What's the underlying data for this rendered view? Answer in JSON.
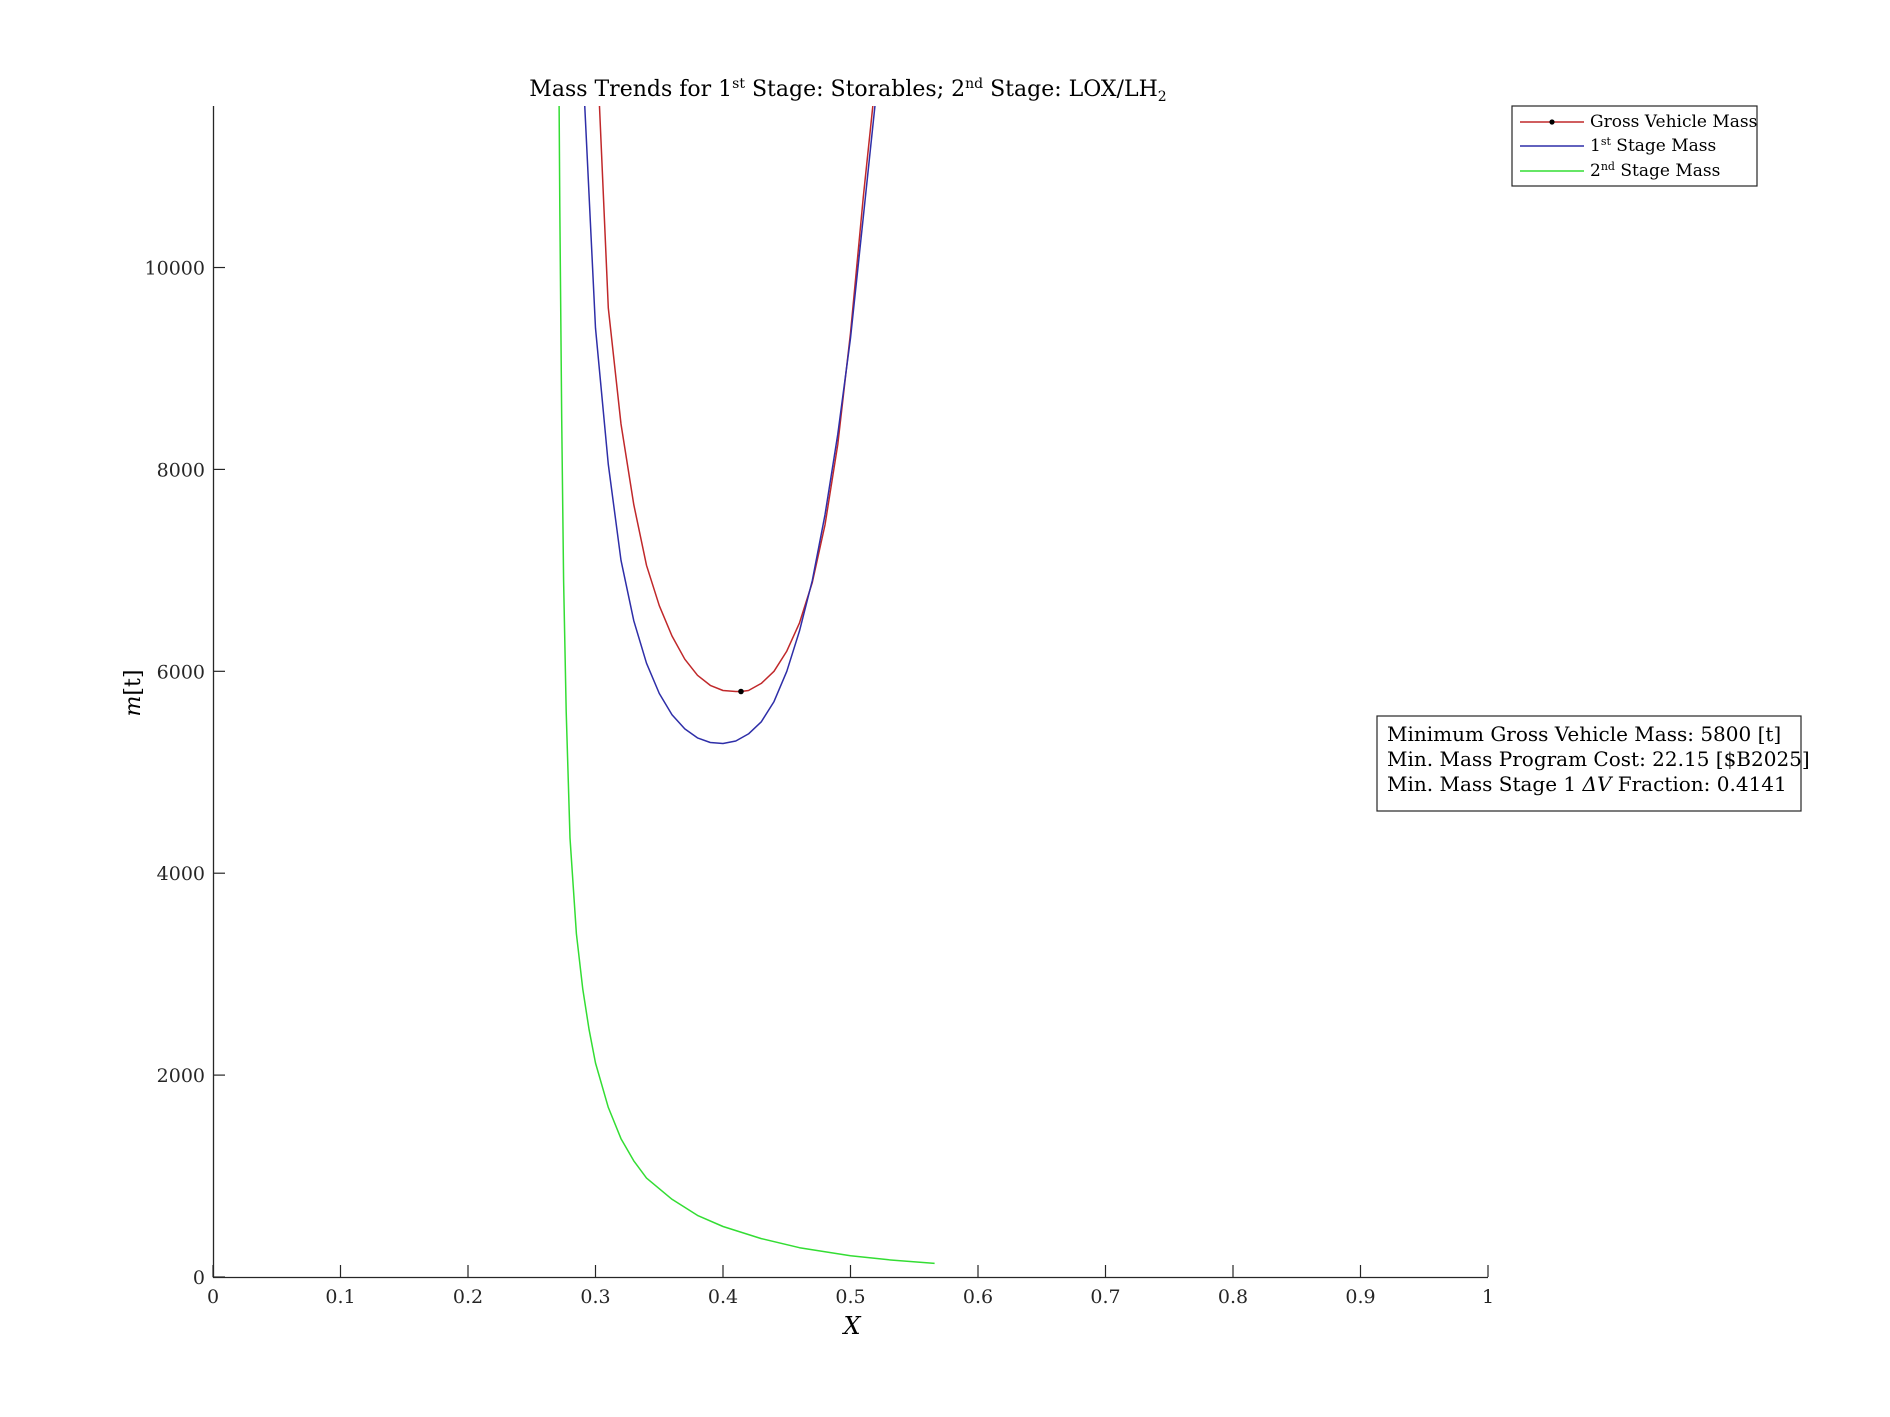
{
  "chart_data": {
    "type": "line",
    "title": {
      "prefix": "Mass Trends for 1",
      "sup1": "st",
      "middle": " Stage: Storables; 2",
      "sup2": "nd",
      "suffix": " Stage: LOX/LH",
      "sub": "2"
    },
    "xlabel": "X",
    "ylabel": {
      "italic": "m",
      "unit": "[t]"
    },
    "xlim": [
      0,
      1
    ],
    "ylim": [
      0,
      11600
    ],
    "xticks": [
      0,
      0.1,
      0.2,
      0.3,
      0.4,
      0.5,
      0.6,
      0.7,
      0.8,
      0.9,
      1
    ],
    "xtick_labels": [
      "0",
      "0.1",
      "0.2",
      "0.3",
      "0.4",
      "0.5",
      "0.6",
      "0.7",
      "0.8",
      "0.9",
      "1"
    ],
    "yticks": [
      0,
      2000,
      4000,
      6000,
      8000,
      10000
    ],
    "ytick_labels": [
      "0",
      "2000",
      "4000",
      "6000",
      "8000",
      "10000"
    ],
    "grid": false,
    "legend_position": "top-right",
    "series": [
      {
        "name": "Gross Vehicle Mass",
        "color": "#c0282a",
        "x": [
          0.3,
          0.31,
          0.32,
          0.33,
          0.34,
          0.35,
          0.36,
          0.37,
          0.38,
          0.39,
          0.4,
          0.41,
          0.4141,
          0.42,
          0.43,
          0.44,
          0.45,
          0.46,
          0.47,
          0.48,
          0.49,
          0.5,
          0.51,
          0.52,
          0.53
        ],
        "y": [
          12500,
          9600,
          8450,
          7650,
          7050,
          6650,
          6350,
          6120,
          5960,
          5860,
          5810,
          5800,
          5800,
          5810,
          5880,
          6000,
          6200,
          6480,
          6880,
          7450,
          8250,
          9350,
          10700,
          11900,
          13000
        ]
      },
      {
        "name": "1st Stage Mass",
        "color": "#2e2ea8",
        "x": [
          0.29,
          0.3,
          0.31,
          0.32,
          0.33,
          0.34,
          0.35,
          0.36,
          0.37,
          0.38,
          0.39,
          0.4,
          0.41,
          0.42,
          0.43,
          0.44,
          0.45,
          0.46,
          0.47,
          0.48,
          0.49,
          0.5,
          0.51,
          0.52,
          0.53
        ],
        "y": [
          12000,
          9400,
          8050,
          7100,
          6500,
          6080,
          5780,
          5570,
          5430,
          5340,
          5295,
          5285,
          5310,
          5380,
          5500,
          5700,
          6000,
          6400,
          6900,
          7550,
          8350,
          9300,
          10500,
          11700,
          13000
        ]
      },
      {
        "name": "2nd Stage Mass",
        "color": "#33dd33",
        "x": [
          0.271,
          0.272,
          0.2735,
          0.275,
          0.277,
          0.28,
          0.285,
          0.29,
          0.295,
          0.3,
          0.31,
          0.32,
          0.33,
          0.34,
          0.36,
          0.38,
          0.4,
          0.43,
          0.46,
          0.5,
          0.53,
          0.566
        ],
        "y": [
          12500,
          10600,
          8500,
          6900,
          5600,
          4350,
          3400,
          2850,
          2450,
          2120,
          1680,
          1370,
          1150,
          980,
          770,
          610,
          500,
          380,
          290,
          210,
          170,
          135
        ]
      }
    ],
    "min_point": {
      "x": 0.4141,
      "y": 5800,
      "series": "Gross Vehicle Mass"
    },
    "legend": [
      {
        "label": "Gross Vehicle Mass",
        "base": "Gross Vehicle Mass",
        "sup": "",
        "rest": ""
      },
      {
        "label": "1st Stage Mass",
        "base": "1",
        "sup": "st",
        "rest": " Stage Mass"
      },
      {
        "label": "2nd Stage Mass",
        "base": "2",
        "sup": "nd",
        "rest": " Stage Mass"
      }
    ],
    "annotation": {
      "line1": "Minimum Gross Vehicle Mass: 5800 [t]",
      "line2": "Min. Mass Program Cost: 22.15 [$B2025]",
      "line3_prefix": "Min. Mass Stage 1 ",
      "line3_delta": "ΔV",
      "line3_suffix": " Fraction: 0.4141"
    }
  }
}
